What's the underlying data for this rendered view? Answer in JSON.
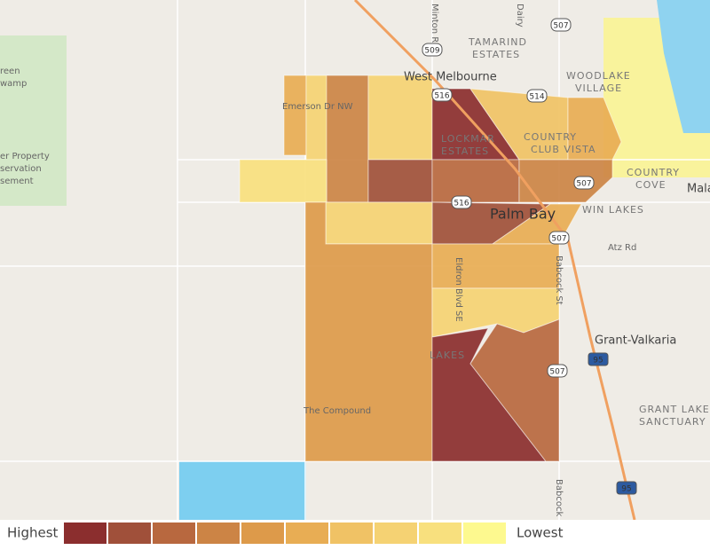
{
  "labels": {
    "west_melbourne": "West Melbourne",
    "tamarind_1": "TAMARIND",
    "tamarind_2": "ESTATES",
    "woodlake_1": "WOODLAKE",
    "woodlake_2": "VILLAGE",
    "lockmar_1": "LOCKMAR",
    "lockmar_2": "ESTATES",
    "country_club_1": "COUNTRY",
    "country_club_2": "CLUB VISTA",
    "country_cove_1": "COUNTRY",
    "country_cove_2": "COVE",
    "palm_bay": "Palm Bay",
    "win_lakes": "WIN LAKES",
    "atz_rd": "Atz Rd",
    "grant_valkaria": "Grant-Valkaria",
    "grant_lake_1": "GRANT LAKE",
    "grant_lake_2": "SANCTUARY",
    "the_compound": "The Compound",
    "emerson": "Emerson Dr NW",
    "minton": "Minton Rd",
    "dairy": "Dairy",
    "eldron": "Eldron Blvd SE",
    "babcock_1": "Babcock St",
    "babcock_2": "Babcock St",
    "lakes": "LAKES",
    "mala": "Mala",
    "green_1": "reen",
    "green_2": "wamp",
    "property_1": "er Property",
    "property_2": "servation",
    "property_3": "sement"
  },
  "road_shields": [
    "509",
    "507",
    "516",
    "514",
    "507",
    "516",
    "507",
    "507",
    "95",
    "95"
  ],
  "legend": {
    "high_label": "Highest",
    "low_label": "Lowest",
    "colors": [
      "#8b2e2e",
      "#a0503a",
      "#b8683f",
      "#cc8445",
      "#dd9a4a",
      "#e8ad54",
      "#f0c265",
      "#f5d273",
      "#f8e07e",
      "#fdf98f"
    ]
  }
}
